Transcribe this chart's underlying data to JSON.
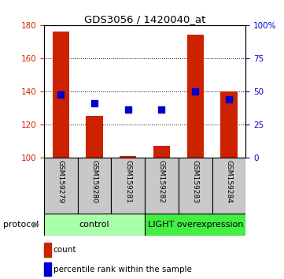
{
  "title": "GDS3056 / 1420040_at",
  "samples": [
    "GSM159279",
    "GSM159280",
    "GSM159281",
    "GSM159282",
    "GSM159283",
    "GSM159284"
  ],
  "count_values": [
    176,
    125,
    101,
    107,
    174,
    140
  ],
  "percentile_values": [
    138,
    133,
    129,
    129,
    140,
    135
  ],
  "ylim_left": [
    100,
    180
  ],
  "ylim_right": [
    0,
    100
  ],
  "yticks_left": [
    100,
    120,
    140,
    160,
    180
  ],
  "yticks_right": [
    0,
    25,
    50,
    75,
    100
  ],
  "yticklabels_right": [
    "0",
    "25",
    "50",
    "75",
    "100%"
  ],
  "bar_color": "#cc2200",
  "dot_color": "#0000cc",
  "label_bg_color": "#c8c8c8",
  "control_color": "#aaffaa",
  "light_color": "#44ee44",
  "protocol_label": "protocol",
  "control_label": "control",
  "light_label": "LIGHT overexpression",
  "legend_count": "count",
  "legend_percentile": "percentile rank within the sample",
  "bar_width": 0.5
}
